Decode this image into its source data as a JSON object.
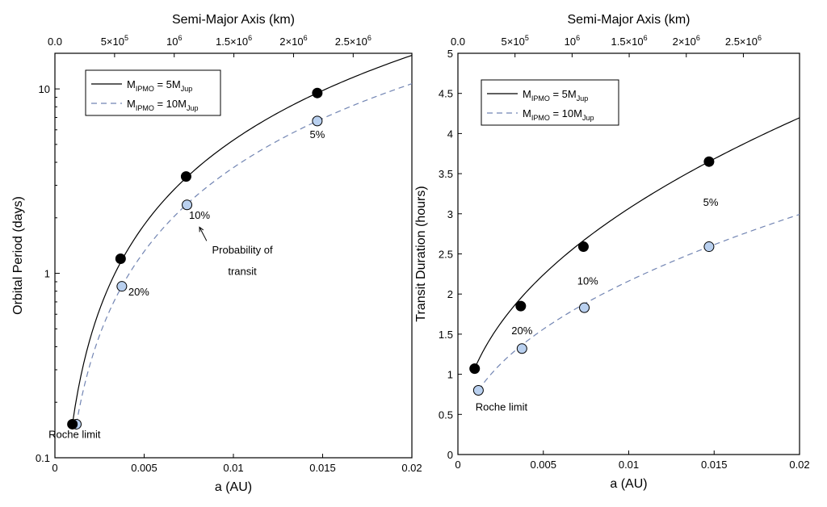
{
  "chart_data": [
    {
      "type": "line",
      "xlabel": "a (AU)",
      "ylabel": "Orbital Period (days)",
      "top_axis_label": "Semi-Major Axis (km)",
      "xlim": [
        0,
        0.02
      ],
      "ylim": [
        0.1,
        15.6
      ],
      "y_scale": "log",
      "top_axis_km_range": [
        0,
        2992000
      ],
      "x_ticks": [
        "0",
        "0.005",
        "0.01",
        "0.015",
        "0.02"
      ],
      "y_ticks": [
        "0.1",
        "1",
        "10"
      ],
      "top_ticks": [
        "0.0",
        "5×10",
        "10",
        "1.5×10",
        "2×10",
        "2.5×10"
      ],
      "top_tick_exps": [
        "",
        "5",
        "6",
        "6",
        "6",
        "6"
      ],
      "legend": {
        "position": "top-left",
        "entries": [
          {
            "prefix": "M",
            "sub1": "IPMO",
            "mid": " = 5M",
            "sub2": "Jup",
            "style": "solid"
          },
          {
            "prefix": "M",
            "sub1": "IPMO",
            "mid": " = 10M",
            "sub2": "Jup",
            "style": "dashed"
          }
        ]
      },
      "series": [
        {
          "style": "solid",
          "color": "#000000",
          "points": [
            [
              0.00098,
              0.152
            ],
            [
              0.00368,
              1.2
            ],
            [
              0.00735,
              3.35
            ],
            [
              0.0147,
              9.5
            ]
          ]
        },
        {
          "style": "dashed",
          "color": "#7285b3",
          "points": [
            [
              0.0012,
              0.152
            ],
            [
              0.00375,
              0.85
            ],
            [
              0.0074,
              2.35
            ],
            [
              0.0147,
              6.7
            ]
          ]
        }
      ],
      "annotations": [
        {
          "text": "Roche limit",
          "x": 0.0011,
          "y": 0.128
        },
        {
          "text": "20%",
          "x": 0.0047,
          "y": 0.76
        },
        {
          "text": "10%",
          "x": 0.0081,
          "y": 1.98
        },
        {
          "text": "5%",
          "x": 0.0147,
          "y": 5.4
        },
        {
          "text": "Probability of",
          "x": 0.0105,
          "y": 1.28
        },
        {
          "text": "transit",
          "x": 0.0105,
          "y": 0.98
        }
      ]
    },
    {
      "type": "line",
      "xlabel": "a (AU)",
      "ylabel": "Transit Duration (hours)",
      "top_axis_label": "Semi-Major Axis (km)",
      "xlim": [
        0,
        0.02
      ],
      "ylim": [
        0,
        5
      ],
      "y_scale": "linear",
      "top_axis_km_range": [
        0,
        2992000
      ],
      "x_ticks": [
        "0",
        "0.005",
        "0.01",
        "0.015",
        "0.02"
      ],
      "y_ticks": [
        "0",
        "0.5",
        "1",
        "1.5",
        "2",
        "2.5",
        "3",
        "3.5",
        "4",
        "4.5",
        "5"
      ],
      "top_ticks": [
        "0.0",
        "5×10",
        "10",
        "1.5×10",
        "2×10",
        "2.5×10"
      ],
      "top_tick_exps": [
        "",
        "5",
        "6",
        "6",
        "6",
        "6"
      ],
      "legend": {
        "position": "top-left",
        "entries": [
          {
            "prefix": "M",
            "sub1": "IPMO",
            "mid": " = 5M",
            "sub2": "Jup",
            "style": "solid"
          },
          {
            "prefix": "M",
            "sub1": "IPMO",
            "mid": " = 10M",
            "sub2": "Jup",
            "style": "dashed"
          }
        ]
      },
      "series": [
        {
          "style": "solid",
          "color": "#000000",
          "points": [
            [
              0.00098,
              1.07
            ],
            [
              0.00368,
              1.85
            ],
            [
              0.00735,
              2.59
            ],
            [
              0.0147,
              3.65
            ]
          ]
        },
        {
          "style": "dashed",
          "color": "#7285b3",
          "points": [
            [
              0.0012,
              0.8
            ],
            [
              0.00375,
              1.32
            ],
            [
              0.0074,
              1.83
            ],
            [
              0.0147,
              2.59
            ]
          ]
        }
      ],
      "annotations": [
        {
          "text": "Roche limit",
          "x": 0.00255,
          "y": 0.55
        },
        {
          "text": "20%",
          "x": 0.00375,
          "y": 1.5
        },
        {
          "text": "10%",
          "x": 0.0076,
          "y": 2.12
        },
        {
          "text": "5%",
          "x": 0.0148,
          "y": 3.1
        }
      ]
    }
  ]
}
